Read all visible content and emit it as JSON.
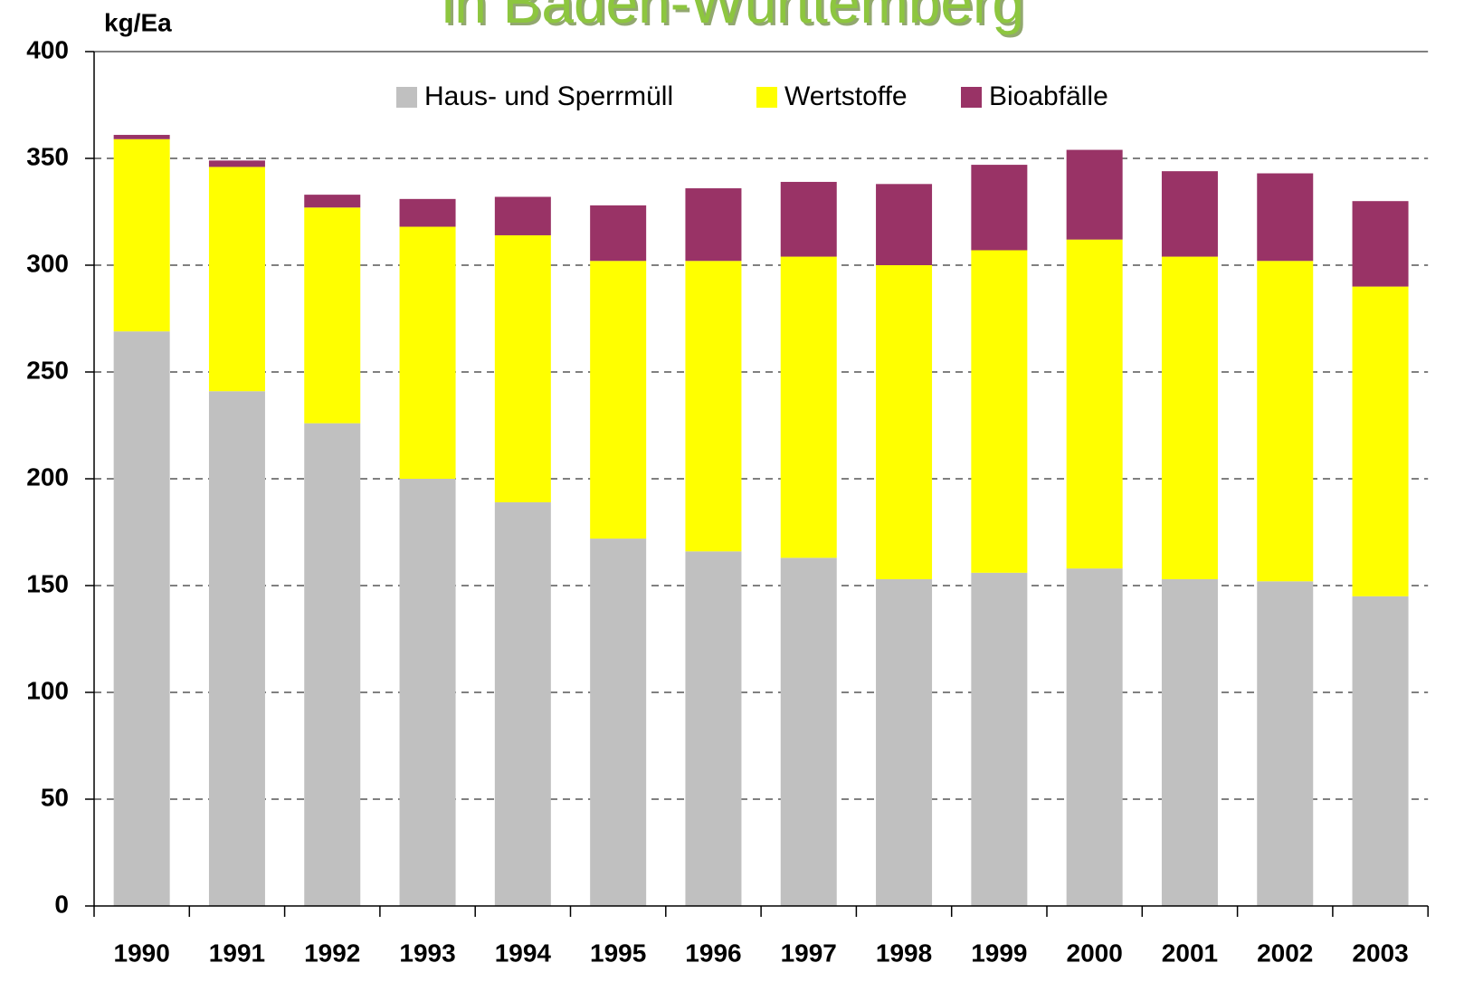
{
  "chart_data": {
    "type": "stacked_bar",
    "title": "in Baden-Württemberg",
    "y_label": "kg/Ea",
    "categories": [
      "1990",
      "1991",
      "1992",
      "1993",
      "1994",
      "1995",
      "1996",
      "1997",
      "1998",
      "1999",
      "2000",
      "2001",
      "2002",
      "2003"
    ],
    "series": [
      {
        "name": "Haus- und Sperrmüll",
        "color": "#c0c0c0",
        "values": [
          269,
          241,
          226,
          200,
          189,
          172,
          166,
          163,
          153,
          156,
          158,
          153,
          152,
          145
        ]
      },
      {
        "name": "Wertstoffe",
        "color": "#ffff00",
        "values": [
          90,
          105,
          101,
          118,
          125,
          130,
          136,
          141,
          147,
          151,
          154,
          151,
          150,
          145
        ]
      },
      {
        "name": "Bioabfälle",
        "color": "#993366",
        "values": [
          2,
          3,
          6,
          13,
          18,
          26,
          34,
          35,
          38,
          40,
          42,
          40,
          41,
          40
        ]
      }
    ],
    "ylim": [
      0,
      400
    ],
    "yticks": [
      0,
      50,
      100,
      150,
      200,
      250,
      300,
      350,
      400
    ],
    "grid": true
  }
}
